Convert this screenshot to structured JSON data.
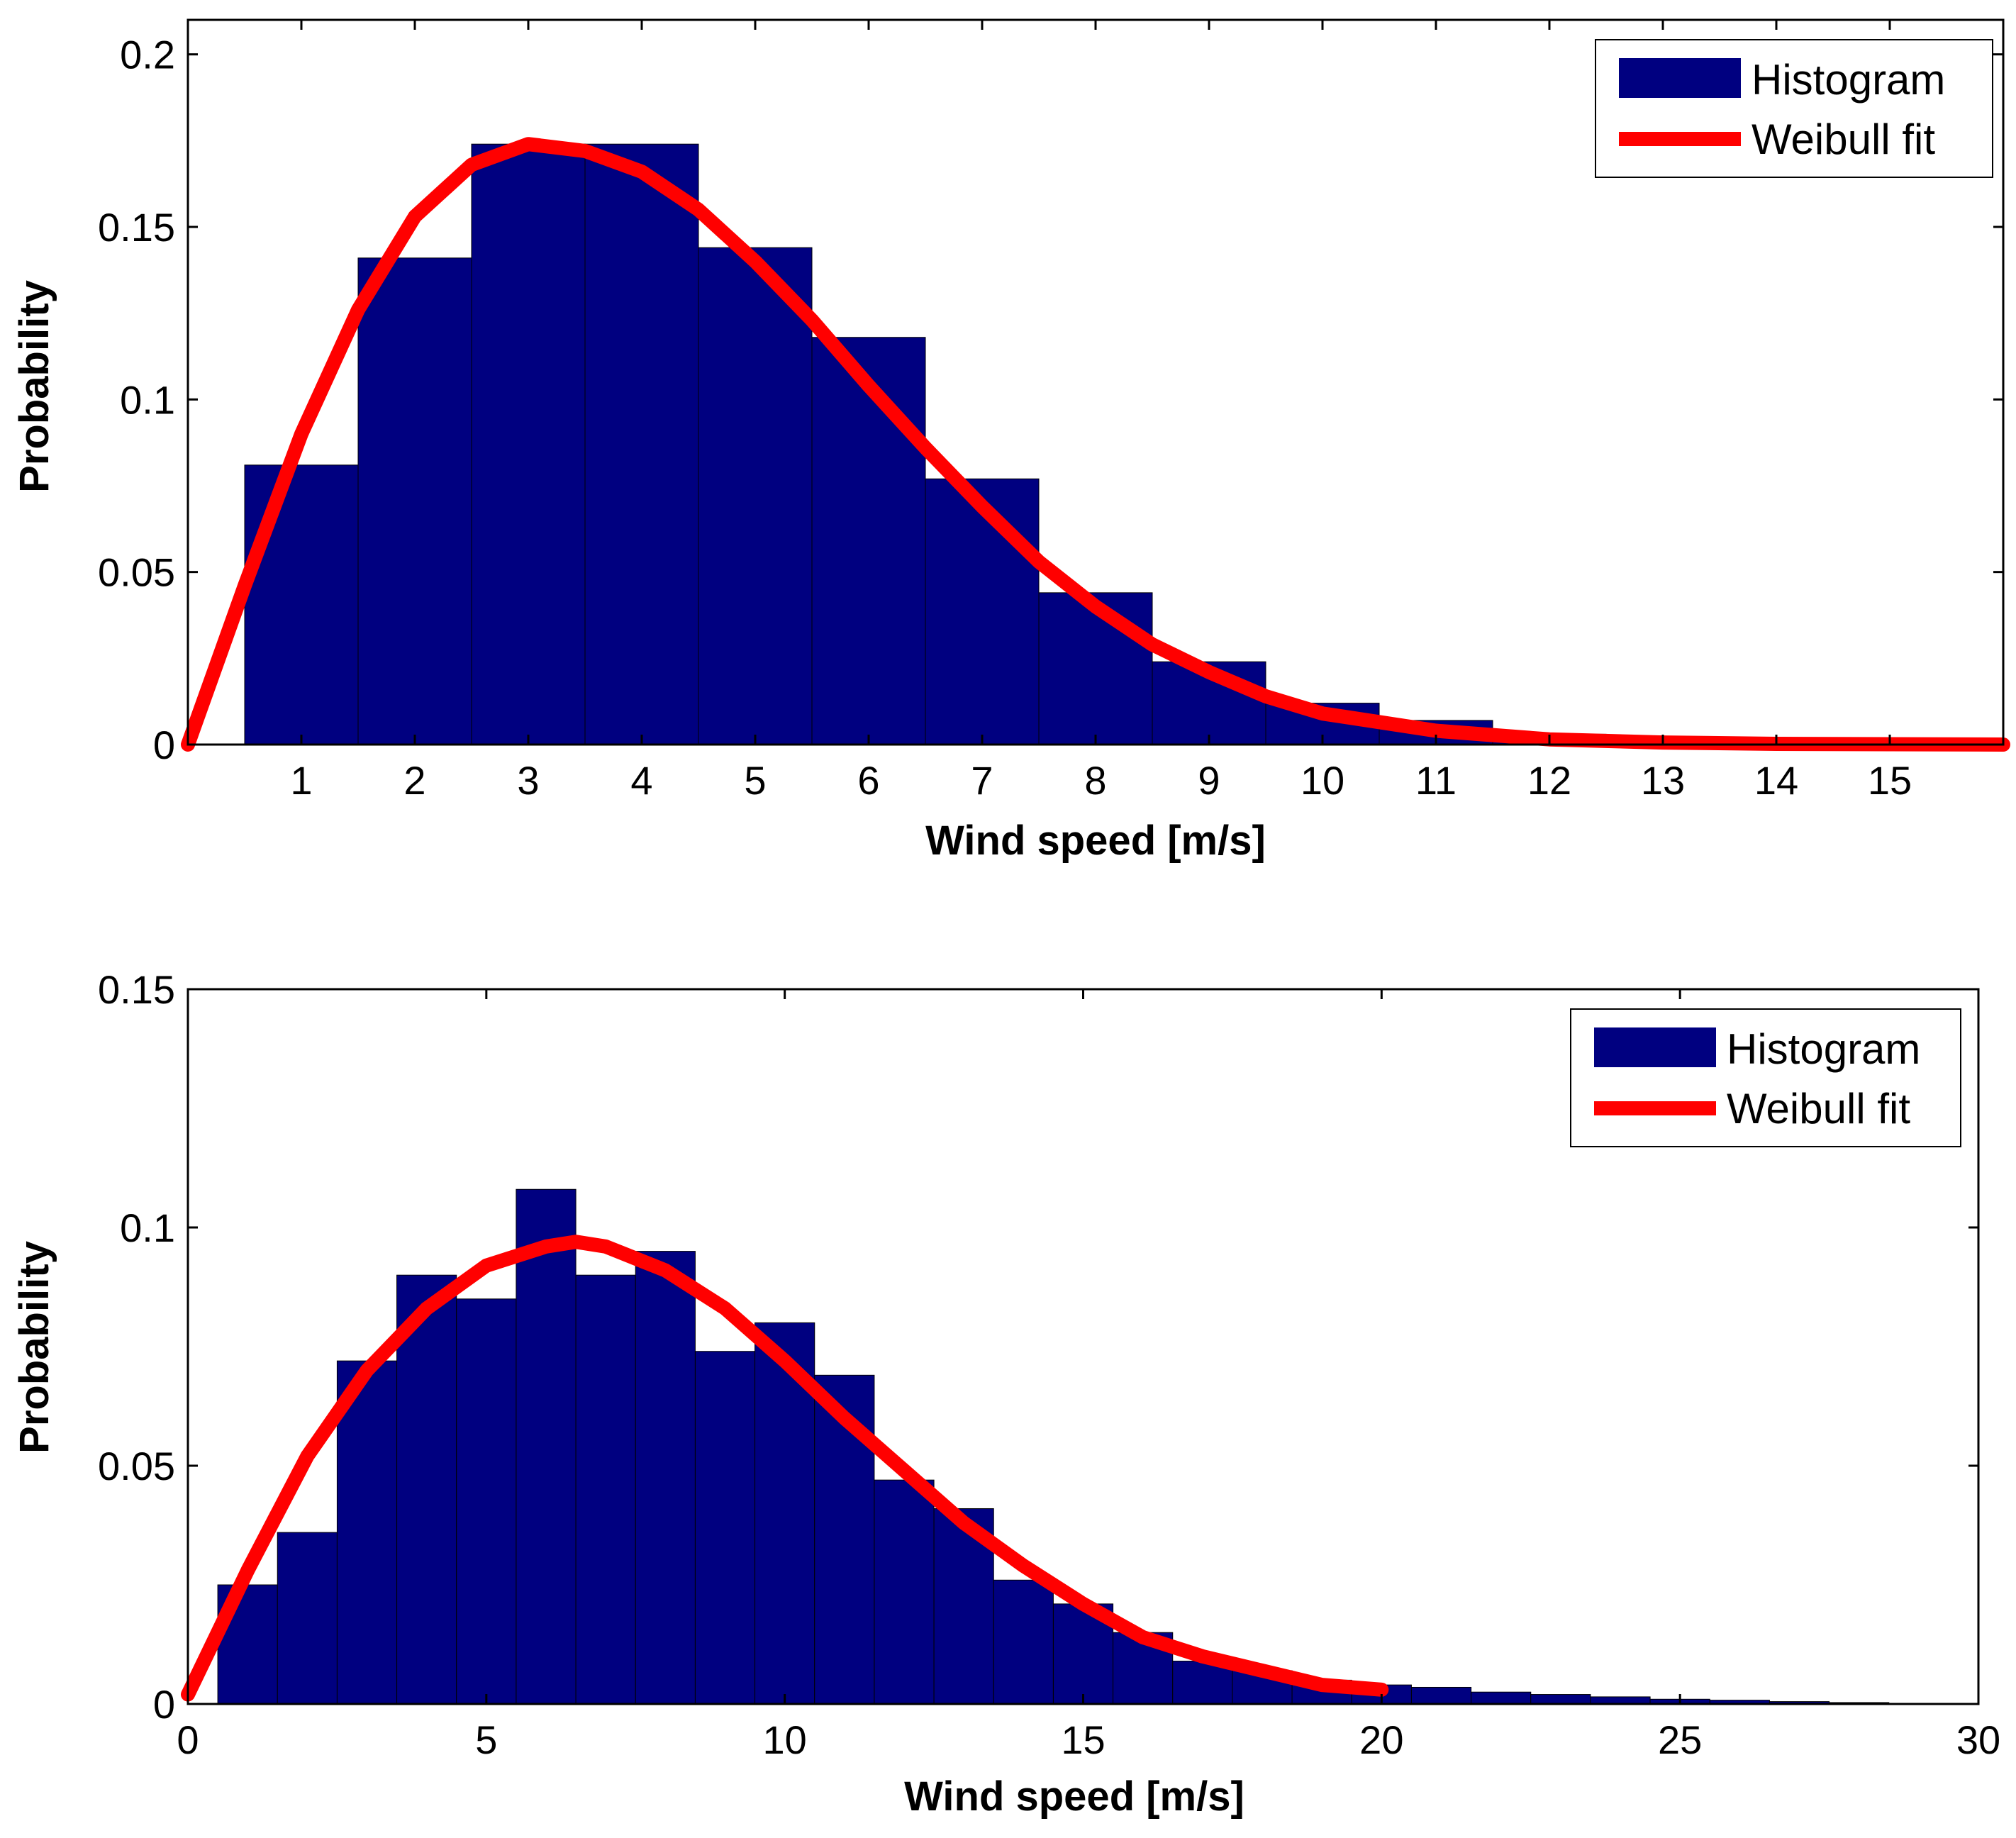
{
  "colors": {
    "bar": "#000080",
    "fit": "#ff0000",
    "axes": "#000000",
    "background": "#ffffff"
  },
  "chart_data": [
    {
      "type": "bar",
      "title": "",
      "xlabel": "Wind speed [m/s]",
      "ylabel": "Probability",
      "xlim": [
        0,
        16
      ],
      "ylim": [
        0,
        0.21
      ],
      "xticks": [
        1,
        2,
        3,
        4,
        5,
        6,
        7,
        8,
        9,
        10,
        11,
        12,
        13,
        14,
        15
      ],
      "yticks": [
        0,
        0.05,
        0.1,
        0.15,
        0.2
      ],
      "ytick_labels": [
        "0",
        "0.05",
        "0.1",
        "0.15",
        "0.2"
      ],
      "grid": false,
      "legend_position": "top-right",
      "series": [
        {
          "name": "Histogram",
          "kind": "bar",
          "bin_width": 1,
          "x": [
            1,
            2,
            3,
            4,
            5,
            6,
            7,
            8,
            9,
            10,
            11,
            12,
            13,
            14,
            15
          ],
          "values": [
            0.081,
            0.141,
            0.174,
            0.174,
            0.144,
            0.118,
            0.077,
            0.044,
            0.024,
            0.012,
            0.007,
            0.003,
            0.001,
            0.0005,
            0.0002
          ]
        },
        {
          "name": "Weibull fit",
          "kind": "line",
          "x": [
            0,
            0.5,
            1,
            1.5,
            2,
            2.5,
            3,
            3.5,
            4,
            4.5,
            5,
            5.5,
            6,
            6.5,
            7,
            7.5,
            8,
            8.5,
            9,
            9.5,
            10,
            11,
            12,
            13,
            14,
            15,
            16
          ],
          "values": [
            0.0,
            0.046,
            0.09,
            0.126,
            0.153,
            0.168,
            0.174,
            0.172,
            0.166,
            0.155,
            0.14,
            0.123,
            0.104,
            0.086,
            0.069,
            0.053,
            0.04,
            0.029,
            0.021,
            0.014,
            0.009,
            0.004,
            0.0015,
            0.0006,
            0.0002,
            0.0001,
            0.0
          ]
        }
      ]
    },
    {
      "type": "bar",
      "title": "",
      "xlabel": "Wind speed [m/s]",
      "ylabel": "Probability",
      "xlim": [
        0,
        30
      ],
      "ylim": [
        0,
        0.15
      ],
      "xticks": [
        0,
        5,
        10,
        15,
        20,
        25,
        30
      ],
      "xtick_labels": [
        "0",
        "5",
        "10",
        "15",
        "20",
        "25",
        "30"
      ],
      "yticks": [
        0,
        0.05,
        0.1,
        0.15
      ],
      "ytick_labels": [
        "0",
        "0.05",
        "0.1",
        "0.15"
      ],
      "grid": false,
      "legend_position": "top-right",
      "series": [
        {
          "name": "Histogram",
          "kind": "bar",
          "bin_width": 1,
          "x": [
            1,
            2,
            3,
            4,
            5,
            6,
            7,
            8,
            9,
            10,
            11,
            12,
            13,
            14,
            15,
            16,
            17,
            18,
            19,
            20,
            21,
            22,
            23,
            24,
            25,
            26,
            27,
            28
          ],
          "values": [
            0.025,
            0.036,
            0.072,
            0.09,
            0.085,
            0.108,
            0.09,
            0.095,
            0.074,
            0.08,
            0.069,
            0.047,
            0.041,
            0.026,
            0.021,
            0.015,
            0.009,
            0.007,
            0.005,
            0.004,
            0.0035,
            0.0025,
            0.002,
            0.0015,
            0.001,
            0.0008,
            0.0005,
            0.0003
          ]
        },
        {
          "name": "Weibull fit",
          "kind": "line",
          "x": [
            0,
            1,
            2,
            3,
            4,
            5,
            6,
            6.5,
            7,
            8,
            9,
            10,
            11,
            12,
            13,
            14,
            15,
            16,
            17,
            18,
            19,
            20
          ],
          "values": [
            0.002,
            0.028,
            0.052,
            0.07,
            0.083,
            0.092,
            0.096,
            0.097,
            0.096,
            0.091,
            0.083,
            0.072,
            0.06,
            0.049,
            0.038,
            0.029,
            0.021,
            0.014,
            0.01,
            0.007,
            0.004,
            0.003
          ]
        }
      ]
    }
  ]
}
